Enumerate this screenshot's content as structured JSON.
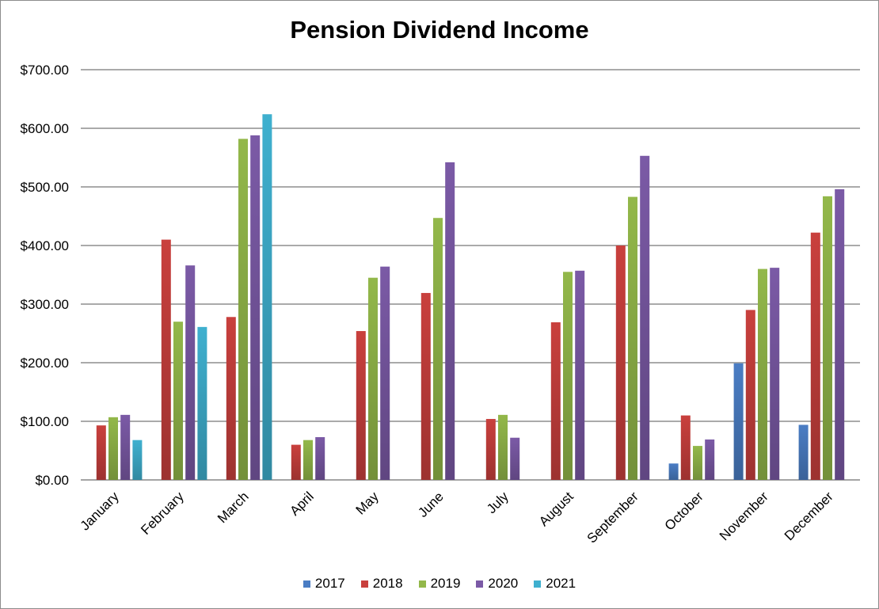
{
  "chart_data": {
    "type": "bar",
    "title": "Pension Dividend Income",
    "xlabel": "",
    "ylabel": "",
    "ylim": [
      0,
      700
    ],
    "yticks": [
      "$0.00",
      "$100.00",
      "$200.00",
      "$300.00",
      "$400.00",
      "$500.00",
      "$600.00",
      "$700.00"
    ],
    "grid": true,
    "legend_position": "bottom",
    "categories": [
      "January",
      "February",
      "March",
      "April",
      "May",
      "June",
      "July",
      "August",
      "September",
      "October",
      "November",
      "December"
    ],
    "series": [
      {
        "name": "2017",
        "color": "#4a7dc4",
        "values": [
          null,
          null,
          null,
          null,
          null,
          null,
          null,
          null,
          null,
          28,
          199,
          94
        ]
      },
      {
        "name": "2018",
        "color": "#c9403d",
        "values": [
          93,
          410,
          278,
          60,
          254,
          319,
          104,
          269,
          400,
          110,
          290,
          422
        ]
      },
      {
        "name": "2019",
        "color": "#93b84a",
        "values": [
          107,
          270,
          582,
          68,
          345,
          447,
          111,
          355,
          483,
          58,
          360,
          484
        ]
      },
      {
        "name": "2020",
        "color": "#7b5aa6",
        "values": [
          111,
          366,
          588,
          73,
          364,
          542,
          72,
          357,
          553,
          69,
          362,
          496
        ]
      },
      {
        "name": "2021",
        "color": "#3fb0cf",
        "values": [
          68,
          261,
          624,
          null,
          null,
          null,
          null,
          null,
          null,
          null,
          null,
          null
        ]
      }
    ]
  }
}
